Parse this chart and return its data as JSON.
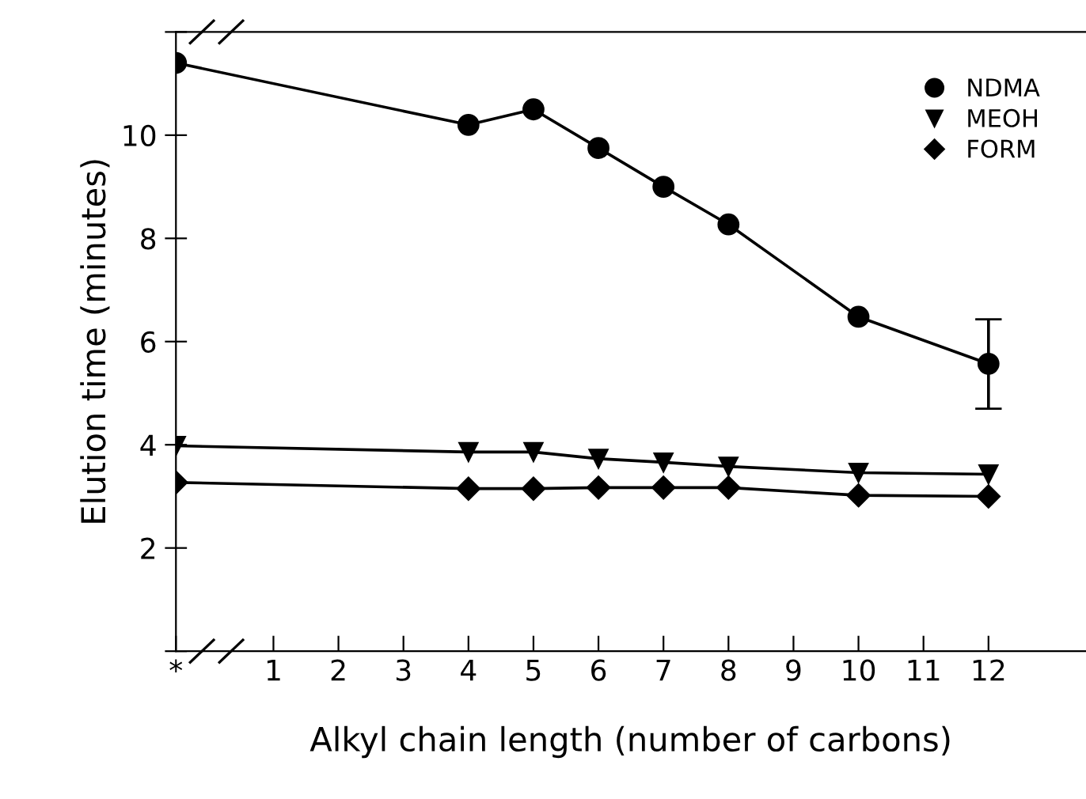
{
  "chart_data": {
    "type": "line",
    "xlabel": "Alkyl chain length (number of carbons)",
    "ylabel": "Elution time (minutes)",
    "x": [
      -0.5,
      4,
      5,
      6,
      7,
      8,
      10,
      12
    ],
    "series": [
      {
        "name": "NDMA",
        "color": "#000000",
        "marker": "circle",
        "values": [
          11.4,
          10.2,
          10.5,
          9.75,
          9.0,
          8.27,
          6.48,
          5.57
        ],
        "errors": [
          null,
          null,
          null,
          null,
          null,
          null,
          null,
          [
            4.7,
            6.43
          ]
        ]
      },
      {
        "name": "MEOH",
        "color": "#000000",
        "marker": "triangle",
        "values": [
          3.98,
          3.86,
          3.86,
          3.73,
          3.66,
          3.58,
          3.46,
          3.43
        ]
      },
      {
        "name": "FORM",
        "color": "#000000",
        "marker": "diamond",
        "values": [
          3.27,
          3.15,
          3.15,
          3.17,
          3.17,
          3.17,
          3.02,
          3.0
        ]
      }
    ],
    "xlim": [
      -0.5,
      13.5
    ],
    "xticks": [
      {
        "value": -0.5,
        "label": "*"
      },
      1,
      2,
      3,
      4,
      5,
      6,
      7,
      8,
      9,
      10,
      11,
      12
    ],
    "ylim": [
      0,
      12
    ],
    "yticks": [
      {
        "value": 0,
        "label": null
      },
      2,
      4,
      6,
      8,
      10,
      {
        "value": 12,
        "label": null
      }
    ],
    "grid": false,
    "legend": "top right",
    "line_style": "solid"
  }
}
